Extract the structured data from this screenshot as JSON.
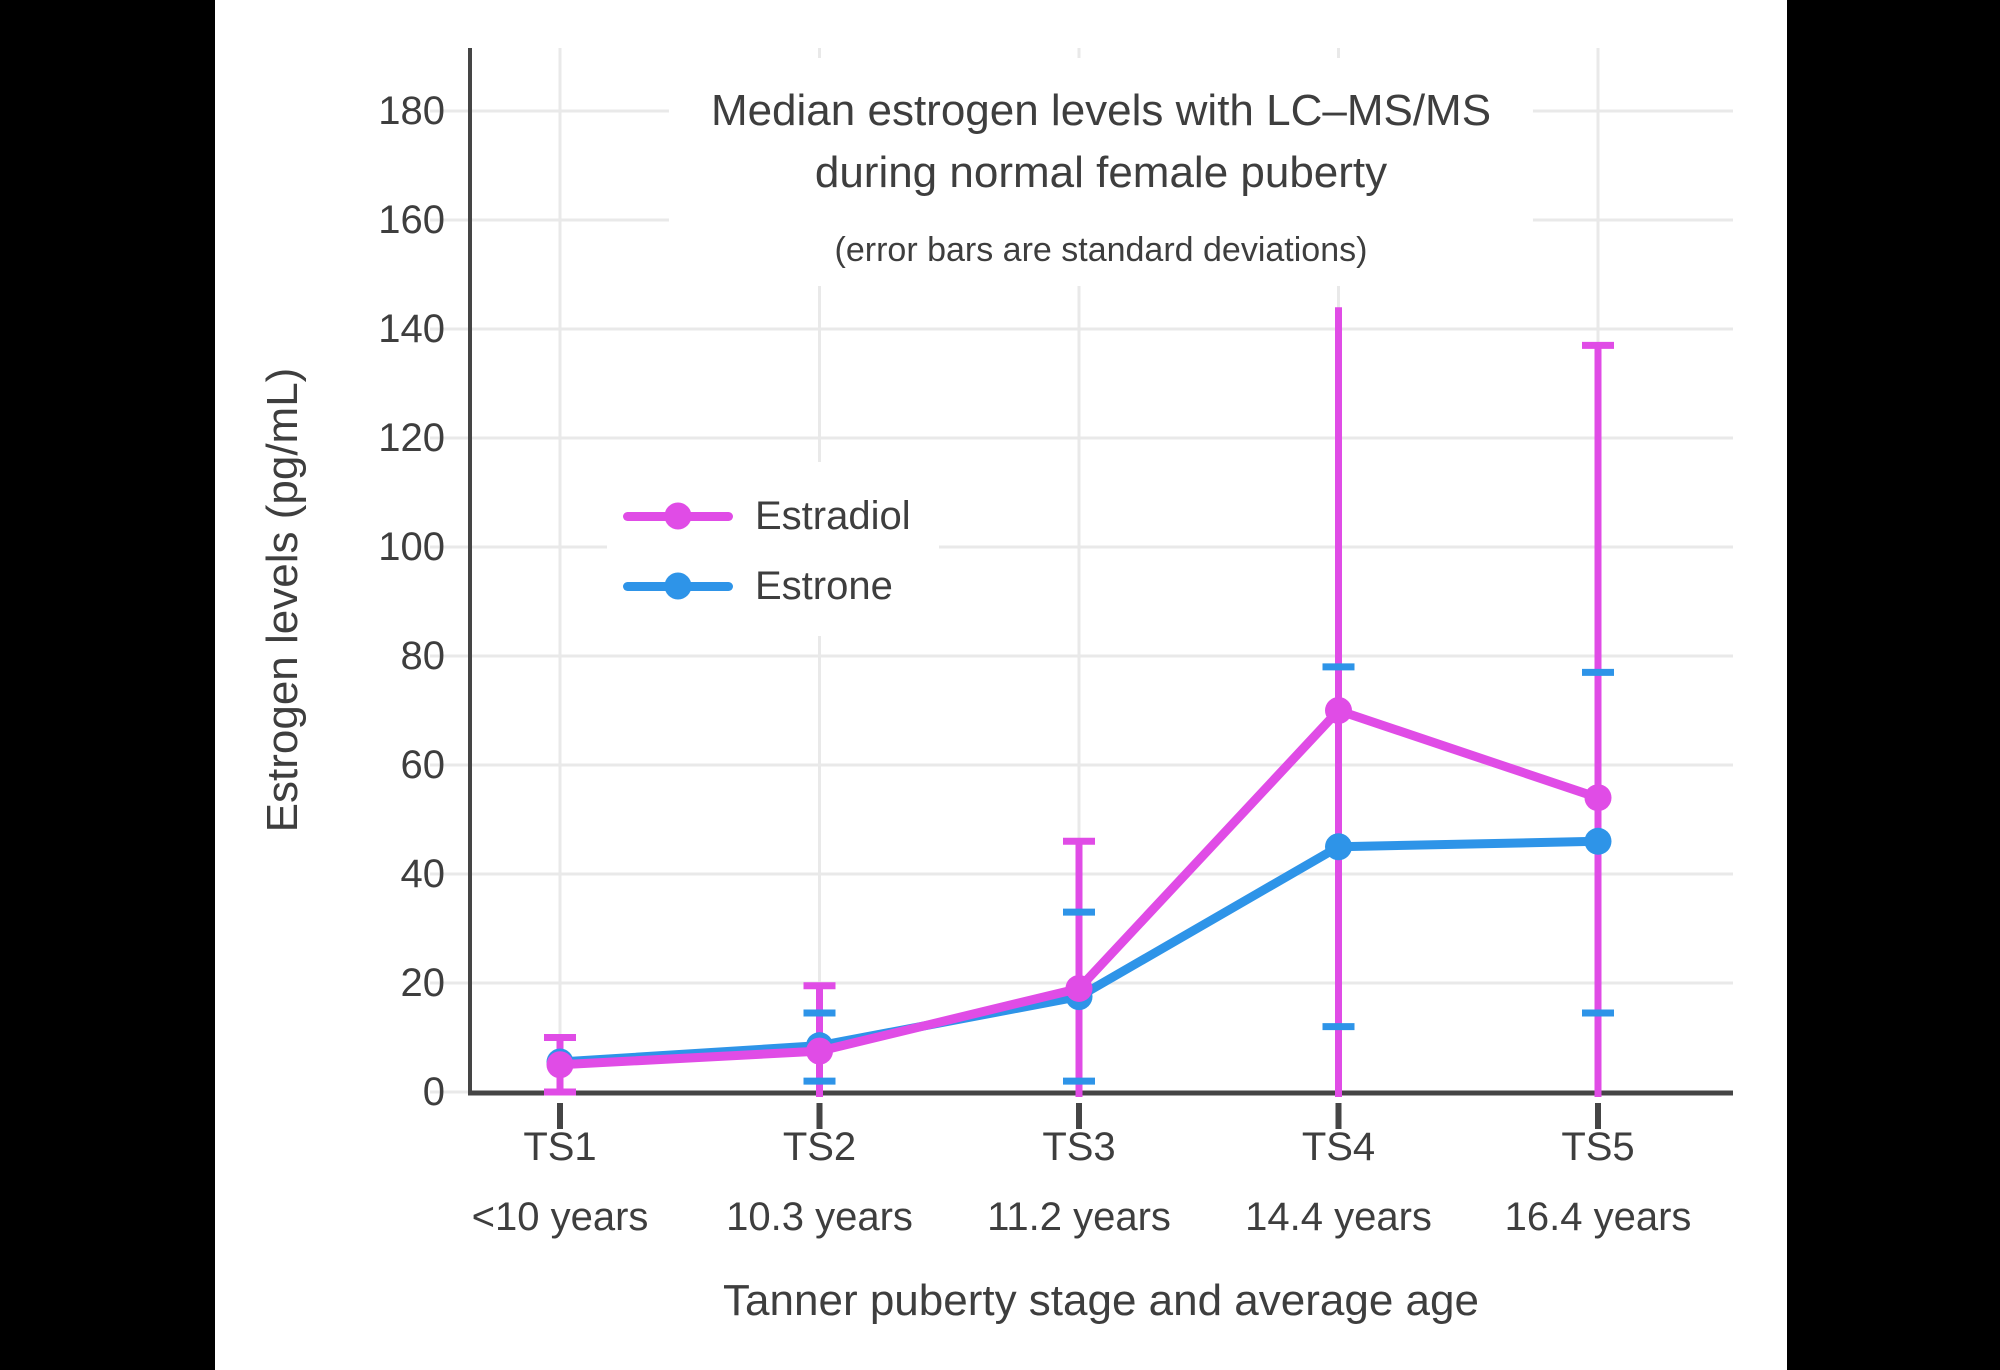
{
  "page": {
    "background": "#000000",
    "canvas_background": "#ffffff",
    "text_color": "#3e3e3e",
    "grid_color": "#e9e9e9",
    "axis_color": "#454545"
  },
  "chart_data": {
    "type": "line",
    "title_line1": "Median estrogen levels with LC–MS/MS",
    "title_line2": "during normal female puberty",
    "subtitle": "(error bars are standard deviations)",
    "ylabel": "Estrogen levels (pg/mL)",
    "xlabel": "Tanner puberty stage and average age",
    "categories": [
      "TS1",
      "TS2",
      "TS3",
      "TS4",
      "TS5"
    ],
    "category_ages": [
      "<10 years",
      "10.3 years",
      "11.2 years",
      "14.4 years",
      "16.4 years"
    ],
    "yticks": [
      0,
      20,
      40,
      60,
      80,
      100,
      120,
      140,
      160,
      180
    ],
    "ylim": [
      0,
      191
    ],
    "grid": true,
    "legend_position": "inside-upper-left",
    "series": [
      {
        "name": "Estradiol",
        "color": "#e04ce6",
        "values": [
          5,
          7.5,
          19,
          70,
          54
        ],
        "error_high": [
          10,
          19.5,
          46,
          144,
          137
        ],
        "error_low": [
          0,
          0,
          0,
          0,
          0
        ],
        "error_cap_top": [
          true,
          true,
          true,
          false,
          true
        ],
        "error_cap_bottom": [
          true,
          false,
          false,
          false,
          false
        ]
      },
      {
        "name": "Estrone",
        "color": "#2e94e8",
        "values": [
          5.5,
          8.5,
          17.5,
          45,
          46
        ],
        "error_high": [
          null,
          14.5,
          33,
          78,
          77
        ],
        "error_low": [
          null,
          2,
          2,
          12,
          14.5
        ],
        "error_cap_top": [
          false,
          true,
          true,
          true,
          true
        ],
        "error_cap_bottom": [
          false,
          true,
          true,
          true,
          true
        ]
      }
    ]
  }
}
